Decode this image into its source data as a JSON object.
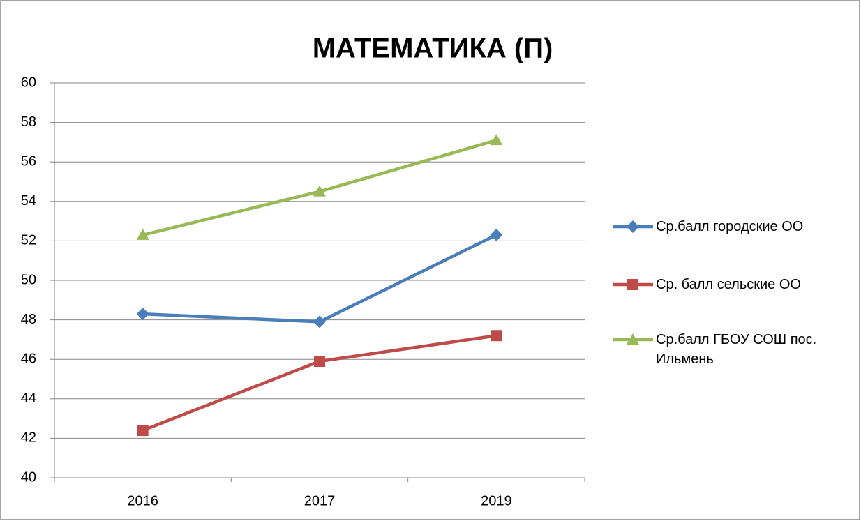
{
  "chart_data": {
    "type": "line",
    "title": "МАТЕМАТИКА (П)",
    "categories": [
      "2016",
      "2017",
      "2019"
    ],
    "series": [
      {
        "name": "Ср.балл городские ОО",
        "color": "#4a7ebb",
        "marker": "diamond",
        "values": [
          48.3,
          47.9,
          52.3
        ]
      },
      {
        "name": "Ср. балл сельские ОО",
        "color": "#be4b48",
        "marker": "square",
        "values": [
          42.4,
          45.9,
          47.2
        ]
      },
      {
        "name": "Ср.балл ГБОУ СОШ пос. Ильмень",
        "color": "#98b954",
        "marker": "triangle",
        "values": [
          52.3,
          54.5,
          57.1
        ]
      }
    ],
    "ylim": [
      40,
      60
    ],
    "yticks": [
      40,
      42,
      44,
      46,
      48,
      50,
      52,
      54,
      56,
      58,
      60
    ],
    "grid": true,
    "legend": "right"
  }
}
